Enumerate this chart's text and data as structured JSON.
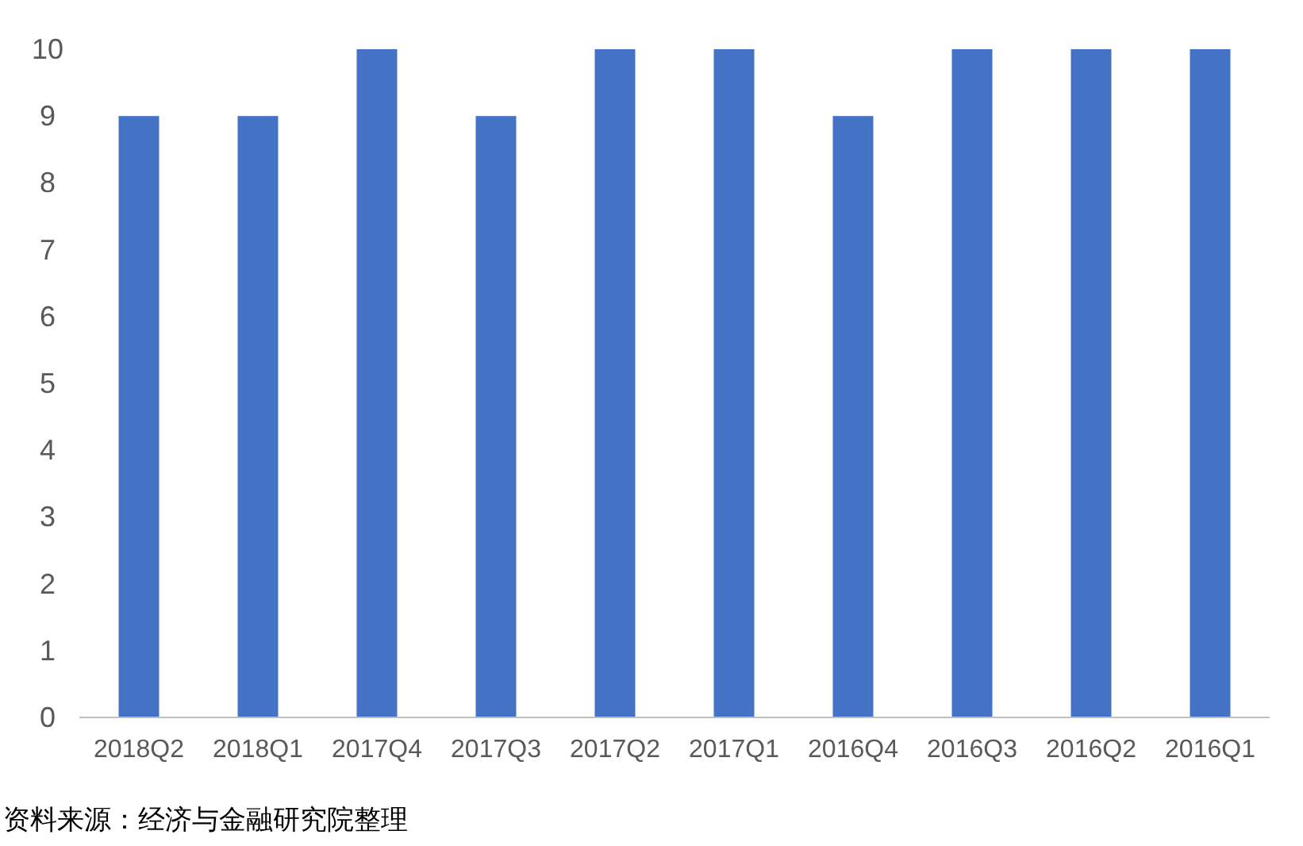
{
  "chart_data": {
    "type": "bar",
    "categories": [
      "2018Q2",
      "2018Q1",
      "2017Q4",
      "2017Q3",
      "2017Q2",
      "2017Q1",
      "2016Q4",
      "2016Q3",
      "2016Q2",
      "2016Q1"
    ],
    "values": [
      9,
      9,
      10,
      9,
      10,
      10,
      9,
      10,
      10,
      10
    ],
    "color": "#4472c4",
    "ylim": [
      0,
      10
    ],
    "yticks": [
      0,
      1,
      2,
      3,
      4,
      5,
      6,
      7,
      8,
      9,
      10
    ],
    "annotations": [
      "资料来源：经济与金融研究院整理"
    ]
  }
}
